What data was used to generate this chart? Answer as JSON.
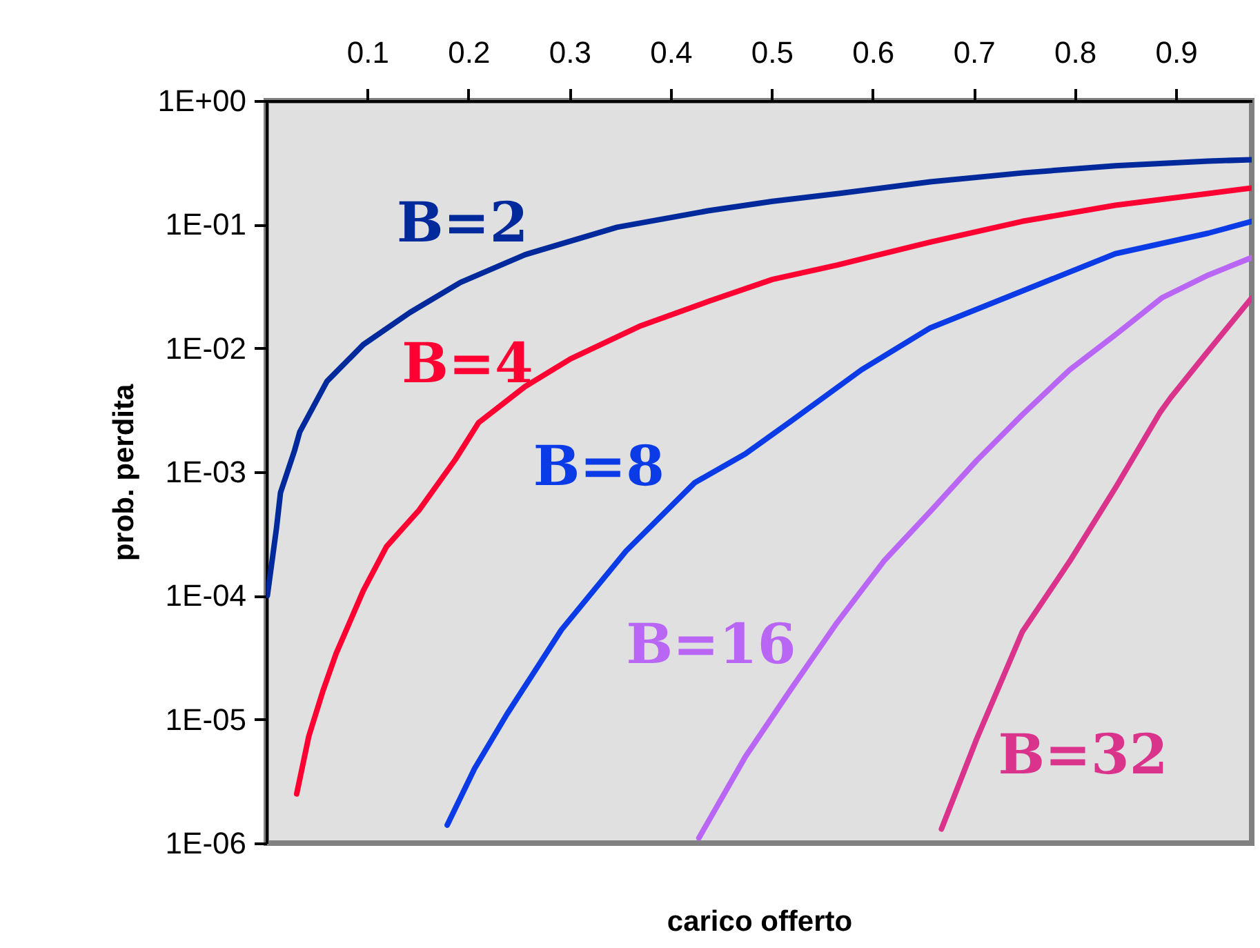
{
  "chart_data": {
    "type": "line",
    "xlabel": "carico offerto",
    "ylabel": "prob. perdita",
    "log": true,
    "xlim": [
      0,
      0.975
    ],
    "xticks": [
      0.1,
      0.2,
      0.3,
      0.4,
      0.5,
      0.6,
      0.7,
      0.8,
      0.9
    ],
    "ylim": [
      1e-06,
      1
    ],
    "yticks": [
      {
        "value": 1,
        "label": "1E+00"
      },
      {
        "value": 0.1,
        "label": "1E-01"
      },
      {
        "value": 0.01,
        "label": "1E-02"
      },
      {
        "value": 0.001,
        "label": "1E-03"
      },
      {
        "value": 0.0001,
        "label": "1E-04"
      },
      {
        "value": 1e-05,
        "label": "1E-05"
      },
      {
        "value": 1e-06,
        "label": "1E-06"
      }
    ],
    "series": [
      {
        "name": "B=2",
        "color": "#00299c",
        "x": [
          0.001,
          0.01,
          0.014,
          0.028,
          0.033,
          0.06,
          0.096,
          0.142,
          0.192,
          0.256,
          0.347,
          0.437,
          0.501,
          0.566,
          0.657,
          0.748,
          0.84,
          0.932,
          0.975
        ],
        "values": [
          0.0001,
          0.00035,
          0.00068,
          0.0015,
          0.0021,
          0.0054,
          0.0107,
          0.0194,
          0.034,
          0.057,
          0.095,
          0.129,
          0.154,
          0.178,
          0.221,
          0.261,
          0.298,
          0.325,
          0.334
        ]
      },
      {
        "name": "B=4",
        "color": "#ff0033",
        "x": [
          0.03,
          0.042,
          0.056,
          0.069,
          0.096,
          0.119,
          0.151,
          0.187,
          0.21,
          0.256,
          0.301,
          0.369,
          0.438,
          0.501,
          0.565,
          0.657,
          0.748,
          0.84,
          0.932,
          0.975
        ],
        "values": [
          2.5e-06,
          7.3e-06,
          1.7e-05,
          3.4e-05,
          0.00011,
          0.00025,
          0.00049,
          0.00126,
          0.0025,
          0.0049,
          0.0082,
          0.015,
          0.024,
          0.036,
          0.047,
          0.072,
          0.106,
          0.143,
          0.178,
          0.197
        ]
      },
      {
        "name": "B=8",
        "color": "#0a3be6",
        "x": [
          0.179,
          0.206,
          0.238,
          0.292,
          0.356,
          0.424,
          0.474,
          0.52,
          0.589,
          0.657,
          0.748,
          0.84,
          0.932,
          0.975
        ],
        "values": [
          1.4e-06,
          4e-06,
          1.1e-05,
          5.3e-05,
          0.00023,
          0.00082,
          0.0014,
          0.0026,
          0.0067,
          0.0146,
          0.029,
          0.058,
          0.085,
          0.106
        ]
      },
      {
        "name": "B=16",
        "color": "#b966f5",
        "x": [
          0.428,
          0.474,
          0.52,
          0.565,
          0.611,
          0.657,
          0.703,
          0.748,
          0.795,
          0.84,
          0.886,
          0.932,
          0.975
        ],
        "values": [
          1.1e-06,
          5e-06,
          1.8e-05,
          6.1e-05,
          0.00019,
          0.00048,
          0.00124,
          0.0029,
          0.0067,
          0.0128,
          0.0255,
          0.039,
          0.054
        ]
      },
      {
        "name": "B=32",
        "color": "#d9338c",
        "x": [
          0.668,
          0.703,
          0.748,
          0.795,
          0.84,
          0.884,
          0.895,
          0.932,
          0.975
        ],
        "values": [
          1.3e-06,
          7e-06,
          5.1e-05,
          0.00019,
          0.00074,
          0.003,
          0.004,
          0.0095,
          0.0255
        ]
      }
    ]
  }
}
